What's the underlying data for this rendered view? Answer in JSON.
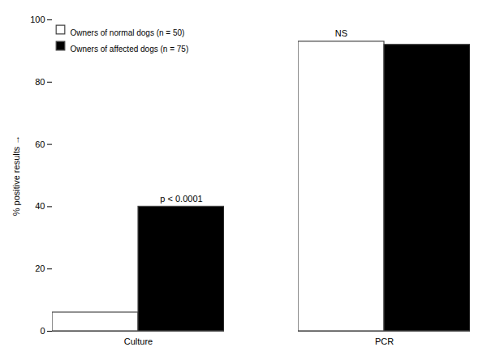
{
  "chart_data": {
    "type": "bar",
    "categories": [
      "Culture",
      "PCR"
    ],
    "series": [
      {
        "name": "Owners of normal dogs (n = 50)",
        "color": "#ffffff",
        "values": [
          6,
          93
        ]
      },
      {
        "name": "Owners of affected dogs (n = 75)",
        "color": "#000000",
        "values": [
          40,
          92
        ]
      }
    ],
    "ylabel": "% positive results",
    "ylim": [
      0,
      100
    ],
    "yticks": [
      0,
      20,
      40,
      60,
      80,
      100
    ],
    "grid": false,
    "legend": "upper left",
    "annotations": [
      {
        "text": "p < 0.0001",
        "category": "Culture",
        "series": "Owners of affected dogs (n = 75)"
      },
      {
        "text": "NS",
        "category": "PCR",
        "series": "Owners of normal dogs (n = 50)"
      }
    ]
  }
}
